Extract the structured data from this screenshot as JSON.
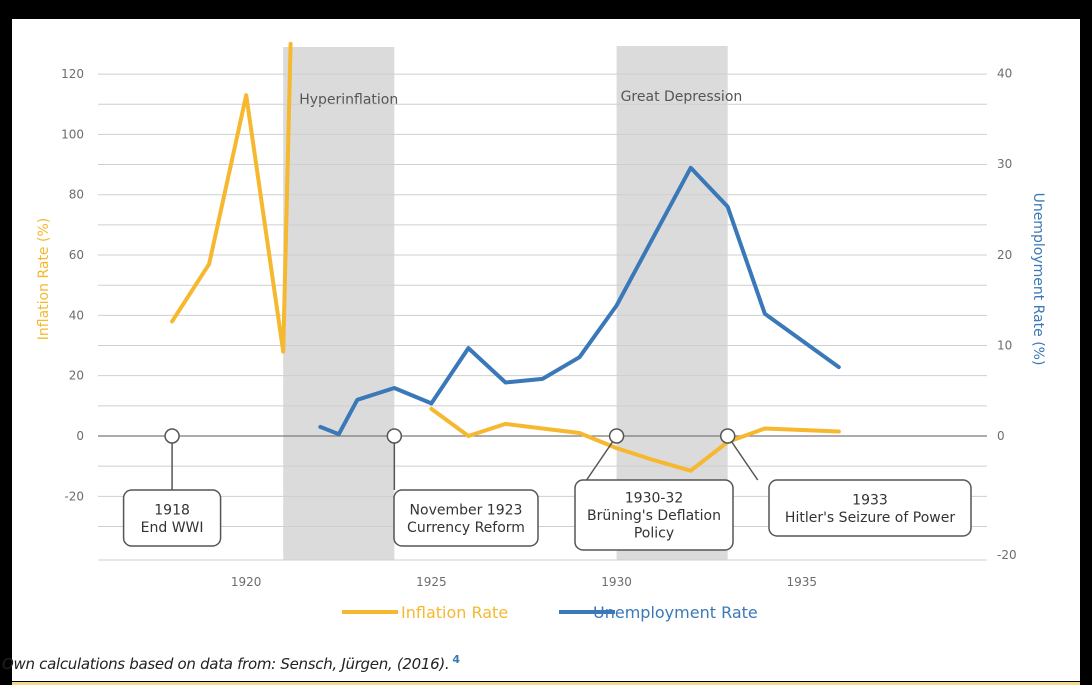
{
  "chart_data": {
    "type": "line",
    "xlim": [
      1916,
      1940
    ],
    "x_ticks": [
      "1920",
      "1925",
      "1930",
      "1935"
    ],
    "left_axis": {
      "label": "Inflation Rate (%)",
      "ylim": [
        -40,
        120
      ],
      "ticks": [
        "120",
        "100",
        "80",
        "60",
        "40",
        "20",
        "0",
        "-20"
      ],
      "color": "#f5b82e"
    },
    "right_axis": {
      "label": "Unemployment Rate (%)",
      "ylim": [
        -20,
        40
      ],
      "ticks": [
        "40",
        "30",
        "20",
        "10",
        "0",
        "-20"
      ],
      "color": "#3a78b8"
    },
    "grid": true,
    "shaded_periods": [
      {
        "label": "Hyperinflation",
        "start": 1921,
        "end": 1924
      },
      {
        "label": "Great Depression",
        "start": 1930,
        "end": 1933
      }
    ],
    "series": [
      {
        "name": "Inflation Rate",
        "axis": "left",
        "color": "#f5b82e",
        "segments": [
          [
            [
              1918,
              38
            ],
            [
              1919,
              57
            ],
            [
              1920,
              113
            ],
            [
              1921,
              28
            ],
            [
              1921.2,
              130
            ]
          ],
          [
            [
              1925,
              9
            ],
            [
              1926,
              0
            ],
            [
              1927,
              4
            ],
            [
              1928,
              2.5
            ],
            [
              1929,
              1
            ],
            [
              1930,
              -4
            ],
            [
              1931,
              -8
            ],
            [
              1932,
              -11.5
            ],
            [
              1933,
              -2
            ],
            [
              1934,
              2.5
            ],
            [
              1936,
              1.5
            ]
          ]
        ]
      },
      {
        "name": "Unemployment Rate",
        "axis": "right",
        "color": "#3a78b8",
        "segments": [
          [
            [
              1922,
              1
            ],
            [
              1922.5,
              0.2
            ],
            [
              1923,
              4
            ],
            [
              1924,
              5.3
            ],
            [
              1925,
              3.6
            ],
            [
              1926,
              9.7
            ],
            [
              1927,
              5.9
            ],
            [
              1928,
              6.3
            ],
            [
              1929,
              8.7
            ],
            [
              1930,
              14.4
            ],
            [
              1931,
              22
            ],
            [
              1932,
              29.6
            ],
            [
              1933,
              25.3
            ],
            [
              1934,
              13.5
            ],
            [
              1936,
              7.6
            ]
          ]
        ]
      }
    ],
    "annotations": [
      {
        "x": 1918,
        "lines": [
          "1918",
          "End WWI"
        ]
      },
      {
        "x": 1924,
        "lines": [
          "November 1923",
          "Currency Reform"
        ]
      },
      {
        "x": 1930,
        "lines": [
          "1930-32",
          "Brüning's Deflation",
          "Policy"
        ]
      },
      {
        "x": 1933,
        "lines": [
          "1933",
          "Hitler's Seizure of Power"
        ]
      }
    ],
    "legend": {
      "placement": "bottom",
      "items": [
        "Inflation Rate",
        "Unemployment Rate"
      ]
    }
  },
  "source_text": "Own calculations based on data from: Sensch, Jürgen, (2016).",
  "footnote_marker": "4"
}
